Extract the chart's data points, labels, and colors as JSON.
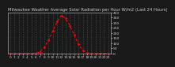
{
  "title": "Milwaukee Weather Average Solar Radiation per Hour W/m2 (Last 24 Hours)",
  "hours": [
    0,
    1,
    2,
    3,
    4,
    5,
    6,
    7,
    8,
    9,
    10,
    11,
    12,
    13,
    14,
    15,
    16,
    17,
    18,
    19,
    20,
    21,
    22,
    23
  ],
  "values": [
    0,
    0,
    0,
    0,
    0,
    0,
    2,
    15,
    60,
    130,
    220,
    310,
    370,
    340,
    270,
    180,
    90,
    30,
    5,
    0,
    0,
    0,
    0,
    0
  ],
  "line_color": "#ff0000",
  "bg_color": "#1a1a1a",
  "plot_bg": "#1a1a1a",
  "grid_color": "#555555",
  "text_color": "#cccccc",
  "ylim": [
    0,
    400
  ],
  "yticks": [
    0,
    50,
    100,
    150,
    200,
    250,
    300,
    350,
    400
  ],
  "title_fontsize": 3.8,
  "tick_fontsize": 3.2
}
